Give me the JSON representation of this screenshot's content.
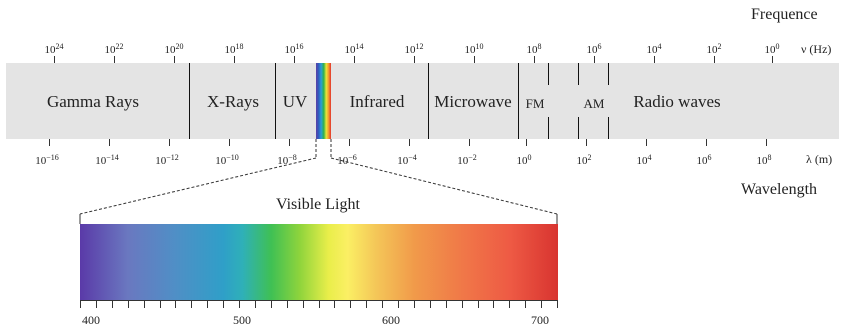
{
  "frequency": {
    "title": "Frequence",
    "unit": "ν (Hz)",
    "ticks": [
      {
        "base": "10",
        "exp": "24"
      },
      {
        "base": "10",
        "exp": "22"
      },
      {
        "base": "10",
        "exp": "20"
      },
      {
        "base": "10",
        "exp": "18"
      },
      {
        "base": "10",
        "exp": "16"
      },
      {
        "base": "10",
        "exp": "14"
      },
      {
        "base": "10",
        "exp": "12"
      },
      {
        "base": "10",
        "exp": "10"
      },
      {
        "base": "10",
        "exp": "8"
      },
      {
        "base": "10",
        "exp": "6"
      },
      {
        "base": "10",
        "exp": "4"
      },
      {
        "base": "10",
        "exp": "2"
      },
      {
        "base": "10",
        "exp": "0"
      }
    ]
  },
  "wavelength": {
    "title": "Wavelength",
    "unit": "λ (m)",
    "ticks": [
      {
        "base": "10",
        "exp": "−16"
      },
      {
        "base": "10",
        "exp": "−14"
      },
      {
        "base": "10",
        "exp": "−12"
      },
      {
        "base": "10",
        "exp": "−10"
      },
      {
        "base": "10",
        "exp": "−8"
      },
      {
        "base": "10",
        "exp": "−6"
      },
      {
        "base": "10",
        "exp": "−4"
      },
      {
        "base": "10",
        "exp": "−2"
      },
      {
        "base": "10",
        "exp": "0"
      },
      {
        "base": "10",
        "exp": "2"
      },
      {
        "base": "10",
        "exp": "4"
      },
      {
        "base": "10",
        "exp": "6"
      },
      {
        "base": "10",
        "exp": "8"
      }
    ]
  },
  "regions": [
    {
      "label": "Gamma Rays"
    },
    {
      "label": "X-Rays"
    },
    {
      "label": "UV"
    },
    {
      "label": "Infrared"
    },
    {
      "label": "Microwave"
    },
    {
      "label": "FM"
    },
    {
      "label": "AM"
    },
    {
      "label": "Radio waves"
    }
  ],
  "visible": {
    "title": "Visible Light",
    "scale_labels": [
      "400",
      "500",
      "600",
      "700"
    ]
  },
  "colors": {
    "band": "#e4e4e4",
    "divider": "#111111",
    "text": "#222222"
  }
}
